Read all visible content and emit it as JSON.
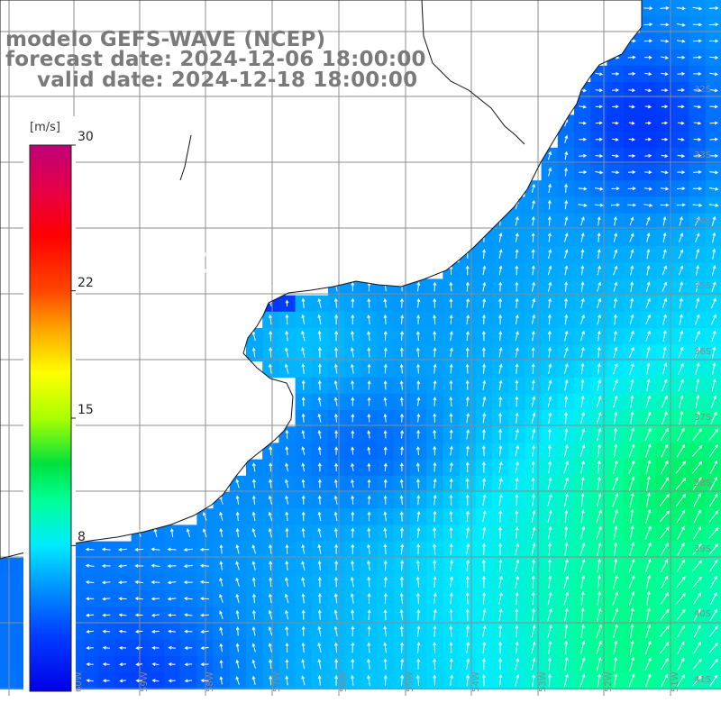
{
  "title": {
    "model": "modelo GEFS-WAVE (NCEP)",
    "forecast": "forecast date: 2024-12-06 18:00:00",
    "valid": "valid date: 2024-12-18 18:00:00"
  },
  "colorbar": {
    "unit": "[m/s]",
    "range": [
      0,
      30
    ],
    "ticks": [
      {
        "value": 30,
        "label": "30"
      },
      {
        "value": 22,
        "label": "22"
      },
      {
        "value": 15,
        "label": "15"
      },
      {
        "value": 8,
        "label": "8"
      }
    ],
    "colors": [
      "#0000e6",
      "#0050ff",
      "#00a0ff",
      "#00e6ff",
      "#00ffa0",
      "#00e600",
      "#a0ff00",
      "#ffff00",
      "#ffa000",
      "#ff4000",
      "#ff0000",
      "#e00050",
      "#c0007a"
    ]
  },
  "lat_labels": [
    "32S",
    "33S",
    "34S",
    "35S",
    "36S",
    "37S",
    "38S",
    "39S",
    "40S",
    "41S"
  ],
  "lon_labels": [
    "60W",
    "59W",
    "58W",
    "57W",
    "56W",
    "55W",
    "54W",
    "53W",
    "52W",
    "51W"
  ],
  "map": {
    "land_color": "#ffffff",
    "grid_color": "#8c8c8c",
    "coast_color": "#111111",
    "arrow_color": "#ffffff",
    "wind_regime": "north-to-northeast flow over the shelf, easterly flow near the southwest coast"
  }
}
